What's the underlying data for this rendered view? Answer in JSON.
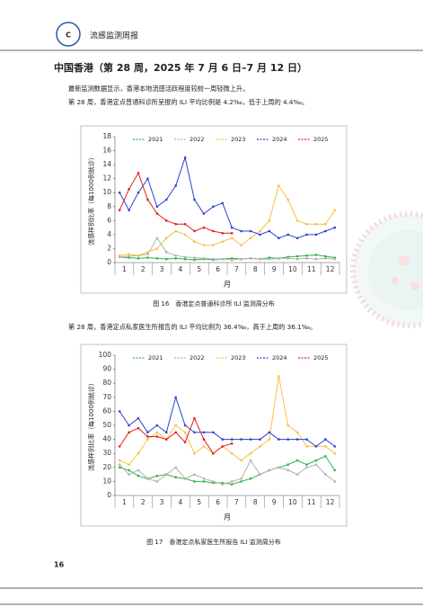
{
  "header": {
    "title": "流感监测周报"
  },
  "section_title": "中国香港（第 28 周，2025 年 7 月 6 日–7 月 12 日）",
  "paragraphs": [
    "最新监测数据显示，香港本地流感活跃程度较前一周轻微上升。",
    "第 28 周，香港定点普通科诊所呈报的 ILI 平均比例是 4.2‰，低于上周的 4.4‰。",
    "第 28 周，香港定点私家医生所报告的 ILI 平均比例为 36.4‰，高于上周的 36.1‰。"
  ],
  "page_number": "16",
  "chart_data": [
    {
      "type": "line",
      "caption": "图 16　香港定点普通科诊所 ILI 监测周分布",
      "y_label": "流感样例比率（每1000例就诊）",
      "x_label": "月",
      "categories": [
        "1",
        null,
        "2",
        null,
        "3",
        null,
        "4",
        null,
        "5",
        null,
        "6",
        null,
        "7",
        null,
        "8",
        null,
        "9",
        null,
        "10",
        null,
        "11",
        null,
        "12",
        null
      ],
      "ylim": [
        0,
        18
      ],
      "yticks": [
        0,
        2,
        4,
        6,
        8,
        10,
        12,
        14,
        16,
        18
      ],
      "series": [
        {
          "name": "2021",
          "color": "#2db34a",
          "values": [
            0.8,
            0.7,
            0.6,
            0.7,
            0.6,
            0.5,
            0.6,
            0.5,
            0.4,
            0.5,
            0.4,
            0.5,
            0.6,
            0.5,
            0.6,
            0.5,
            0.7,
            0.6,
            0.8,
            0.9,
            1.0,
            1.1,
            0.9,
            0.7
          ]
        },
        {
          "name": "2022",
          "color": "#b0b0b0",
          "values": [
            0.8,
            0.9,
            1.0,
            1.2,
            3.5,
            1.5,
            1.0,
            0.8,
            0.7,
            0.6,
            0.5,
            0.5,
            0.4,
            0.5,
            0.6,
            0.5,
            0.5,
            0.6,
            0.6,
            0.5,
            0.6,
            0.5,
            0.6,
            0.5
          ]
        },
        {
          "name": "2023",
          "color": "#f5c242",
          "values": [
            1.0,
            1.2,
            1.0,
            1.5,
            2.0,
            3.5,
            4.5,
            4.0,
            3.0,
            2.5,
            2.5,
            3.0,
            3.5,
            2.5,
            3.5,
            4.5,
            6.0,
            11.0,
            9.0,
            6.0,
            5.5,
            5.5,
            5.5,
            7.5
          ]
        },
        {
          "name": "2024",
          "color": "#2f3fd6",
          "values": [
            10,
            7.5,
            10,
            12,
            8,
            9,
            11,
            15,
            9,
            7,
            8,
            8.5,
            5,
            4.5,
            4.5,
            4,
            4.5,
            3.5,
            4,
            3.5,
            4,
            4,
            4.5,
            5
          ]
        },
        {
          "name": "2025",
          "color": "#e0201b",
          "values": [
            7.5,
            10.5,
            12.8,
            9,
            7,
            6,
            5.5,
            5.5,
            4.5,
            5,
            4.5,
            4.2,
            4.2,
            null,
            null,
            null,
            null,
            null,
            null,
            null,
            null,
            null,
            null,
            null
          ]
        }
      ]
    },
    {
      "type": "line",
      "caption": "图 17　香港定点私家医生所报告 ILI 监测周分布",
      "y_label": "流感样例比率（每1000例就诊）",
      "x_label": "月",
      "categories": [
        "1",
        null,
        "2",
        null,
        "3",
        null,
        "4",
        null,
        "5",
        null,
        "6",
        null,
        "7",
        null,
        "8",
        null,
        "9",
        null,
        "10",
        null,
        "11",
        null,
        "12",
        null
      ],
      "ylim": [
        0,
        100
      ],
      "yticks": [
        0,
        10,
        20,
        30,
        40,
        50,
        60,
        70,
        80,
        90,
        100
      ],
      "series": [
        {
          "name": "2021",
          "color": "#2db34a",
          "values": [
            20,
            18,
            14,
            12,
            14,
            15,
            13,
            12,
            10,
            10,
            9,
            9,
            8,
            10,
            12,
            15,
            18,
            20,
            22,
            25,
            22,
            25,
            28,
            18
          ]
        },
        {
          "name": "2022",
          "color": "#b0b0b0",
          "values": [
            22,
            15,
            18,
            12,
            10,
            15,
            20,
            12,
            15,
            12,
            10,
            8,
            10,
            12,
            25,
            15,
            18,
            20,
            18,
            15,
            20,
            22,
            15,
            10
          ]
        },
        {
          "name": "2023",
          "color": "#f5c242",
          "values": [
            25,
            22,
            30,
            40,
            45,
            40,
            50,
            45,
            30,
            35,
            30,
            35,
            30,
            25,
            30,
            35,
            40,
            85,
            50,
            45,
            35,
            35,
            35,
            30
          ]
        },
        {
          "name": "2024",
          "color": "#2f3fd6",
          "values": [
            60,
            50,
            55,
            45,
            50,
            45,
            70,
            50,
            45,
            45,
            45,
            40,
            40,
            40,
            40,
            40,
            45,
            40,
            40,
            40,
            40,
            35,
            40,
            35
          ]
        },
        {
          "name": "2025",
          "color": "#e0201b",
          "values": [
            35,
            45,
            48,
            42,
            42,
            40,
            45,
            38,
            55,
            40,
            30,
            35,
            37,
            null,
            null,
            null,
            null,
            null,
            null,
            null,
            null,
            null,
            null,
            null
          ]
        }
      ]
    }
  ]
}
